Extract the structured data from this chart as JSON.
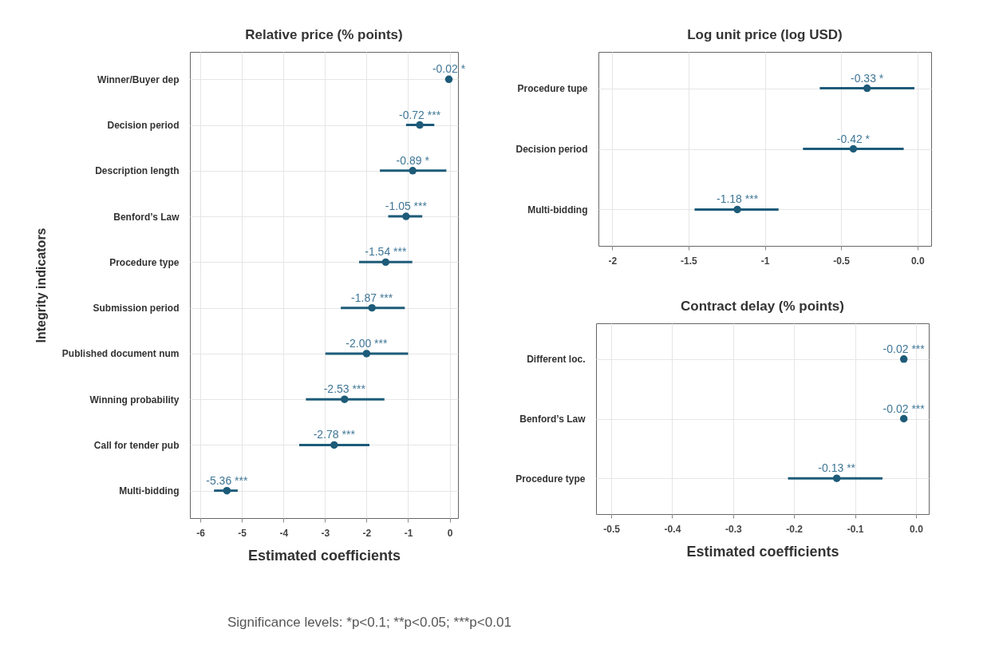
{
  "chart_data": [
    {
      "type": "scatter",
      "orientation": "horizontal",
      "title": "Relative price (% points)",
      "xlabel": "Estimated coefficients",
      "ylabel": "Integrity indicators",
      "categories": [
        "Winner/Buyer dep",
        "Decision period",
        "Description length",
        "Benford’s Law",
        "Procedure type",
        "Submission period",
        "Published document num",
        "Winning probability",
        "Call for tender pub",
        "Multi-bidding"
      ],
      "values": [
        -0.02,
        -0.72,
        -0.89,
        -1.05,
        -1.54,
        -1.87,
        -2.0,
        -2.53,
        -2.78,
        -5.36
      ],
      "errors": [
        null,
        [
          -1.05,
          -0.37
        ],
        [
          -1.68,
          -0.08
        ],
        [
          -1.48,
          -0.66
        ],
        [
          -2.18,
          -0.9
        ],
        [
          -2.62,
          -1.08
        ],
        [
          -2.99,
          -1.0
        ],
        [
          -3.46,
          -1.57
        ],
        [
          -3.62,
          -1.93
        ],
        [
          -5.67,
          -5.1
        ]
      ],
      "value_labels": [
        "-0.02 *",
        "-0.72 ***",
        "-0.89 *",
        "-1.05 ***",
        "-1.54 ***",
        "-1.87 ***",
        "-2.00 ***",
        "-2.53 ***",
        "-2.78 ***",
        "-5.36 ***"
      ],
      "color": "#1d5b79",
      "marker": "circle",
      "xlim": [
        -6.25,
        0.2
      ],
      "xticks": [
        -6,
        -5,
        -4,
        -3,
        -2,
        -1,
        0
      ],
      "grid": true,
      "annotations": [
        "Significance levels: *p<0.1; **p<0.05; ***p<0.01"
      ]
    },
    {
      "type": "scatter",
      "orientation": "horizontal",
      "title": "Log unit price (log USD)",
      "categories": [
        "Procedure tupe",
        "Decision period",
        "Multi-bidding"
      ],
      "values": [
        -0.33,
        -0.42,
        -1.18
      ],
      "errors": [
        [
          -0.64,
          -0.02
        ],
        [
          -0.75,
          -0.09
        ],
        [
          -1.46,
          -0.91
        ]
      ],
      "value_labels": [
        "-0.33 *",
        "-0.42 *",
        "-1.18 ***"
      ],
      "color": "#1d5b79",
      "marker": "circle",
      "xlim": [
        -2.09,
        0.09
      ],
      "xticks": [
        -2,
        -1.5,
        -1,
        -0.5,
        {
          "value": 0,
          "label": "0.0"
        }
      ],
      "grid": true
    },
    {
      "type": "scatter",
      "orientation": "horizontal",
      "title": "Contract delay (% points)",
      "xlabel": "Estimated coefficients",
      "categories": [
        "Different loc.",
        "Benford’s Law",
        "Procedure type"
      ],
      "values": [
        -0.02,
        -0.02,
        -0.13
      ],
      "errors": [
        null,
        null,
        [
          -0.21,
          -0.055
        ]
      ],
      "value_labels": [
        "-0.02 ***",
        "-0.02 ***",
        "-0.13 **"
      ],
      "color": "#1d5b79",
      "marker": "circle",
      "xlim": [
        -0.525,
        0.021
      ],
      "xticks": [
        -0.5,
        -0.4,
        -0.3,
        -0.2,
        -0.1,
        {
          "value": 0,
          "label": "0.0"
        }
      ],
      "grid": true
    }
  ]
}
